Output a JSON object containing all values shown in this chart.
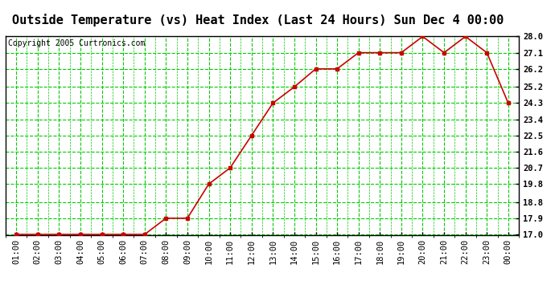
{
  "title": "Outside Temperature (vs) Heat Index (Last 24 Hours) Sun Dec 4 00:00",
  "copyright": "Copyright 2005 Curtronics.com",
  "x_labels": [
    "01:00",
    "02:00",
    "03:00",
    "04:00",
    "05:00",
    "06:00",
    "07:00",
    "08:00",
    "09:00",
    "10:00",
    "11:00",
    "12:00",
    "13:00",
    "14:00",
    "15:00",
    "16:00",
    "17:00",
    "18:00",
    "19:00",
    "20:00",
    "21:00",
    "22:00",
    "23:00",
    "00:00"
  ],
  "y_values": [
    17.0,
    17.0,
    17.0,
    17.0,
    17.0,
    17.0,
    17.0,
    17.9,
    17.9,
    19.8,
    20.7,
    22.5,
    24.3,
    25.2,
    26.2,
    26.2,
    27.1,
    27.1,
    27.1,
    28.0,
    27.1,
    28.0,
    27.1,
    24.3
  ],
  "y_min": 17.0,
  "y_max": 28.0,
  "y_ticks": [
    17.0,
    17.9,
    18.8,
    19.8,
    20.7,
    21.6,
    22.5,
    23.4,
    24.3,
    25.2,
    26.2,
    27.1,
    28.0
  ],
  "line_color": "#cc0000",
  "marker_color": "#cc0000",
  "bg_color": "#ffffff",
  "grid_color": "#00cc00",
  "title_fontsize": 11,
  "copyright_fontsize": 7,
  "tick_fontsize": 7.5
}
